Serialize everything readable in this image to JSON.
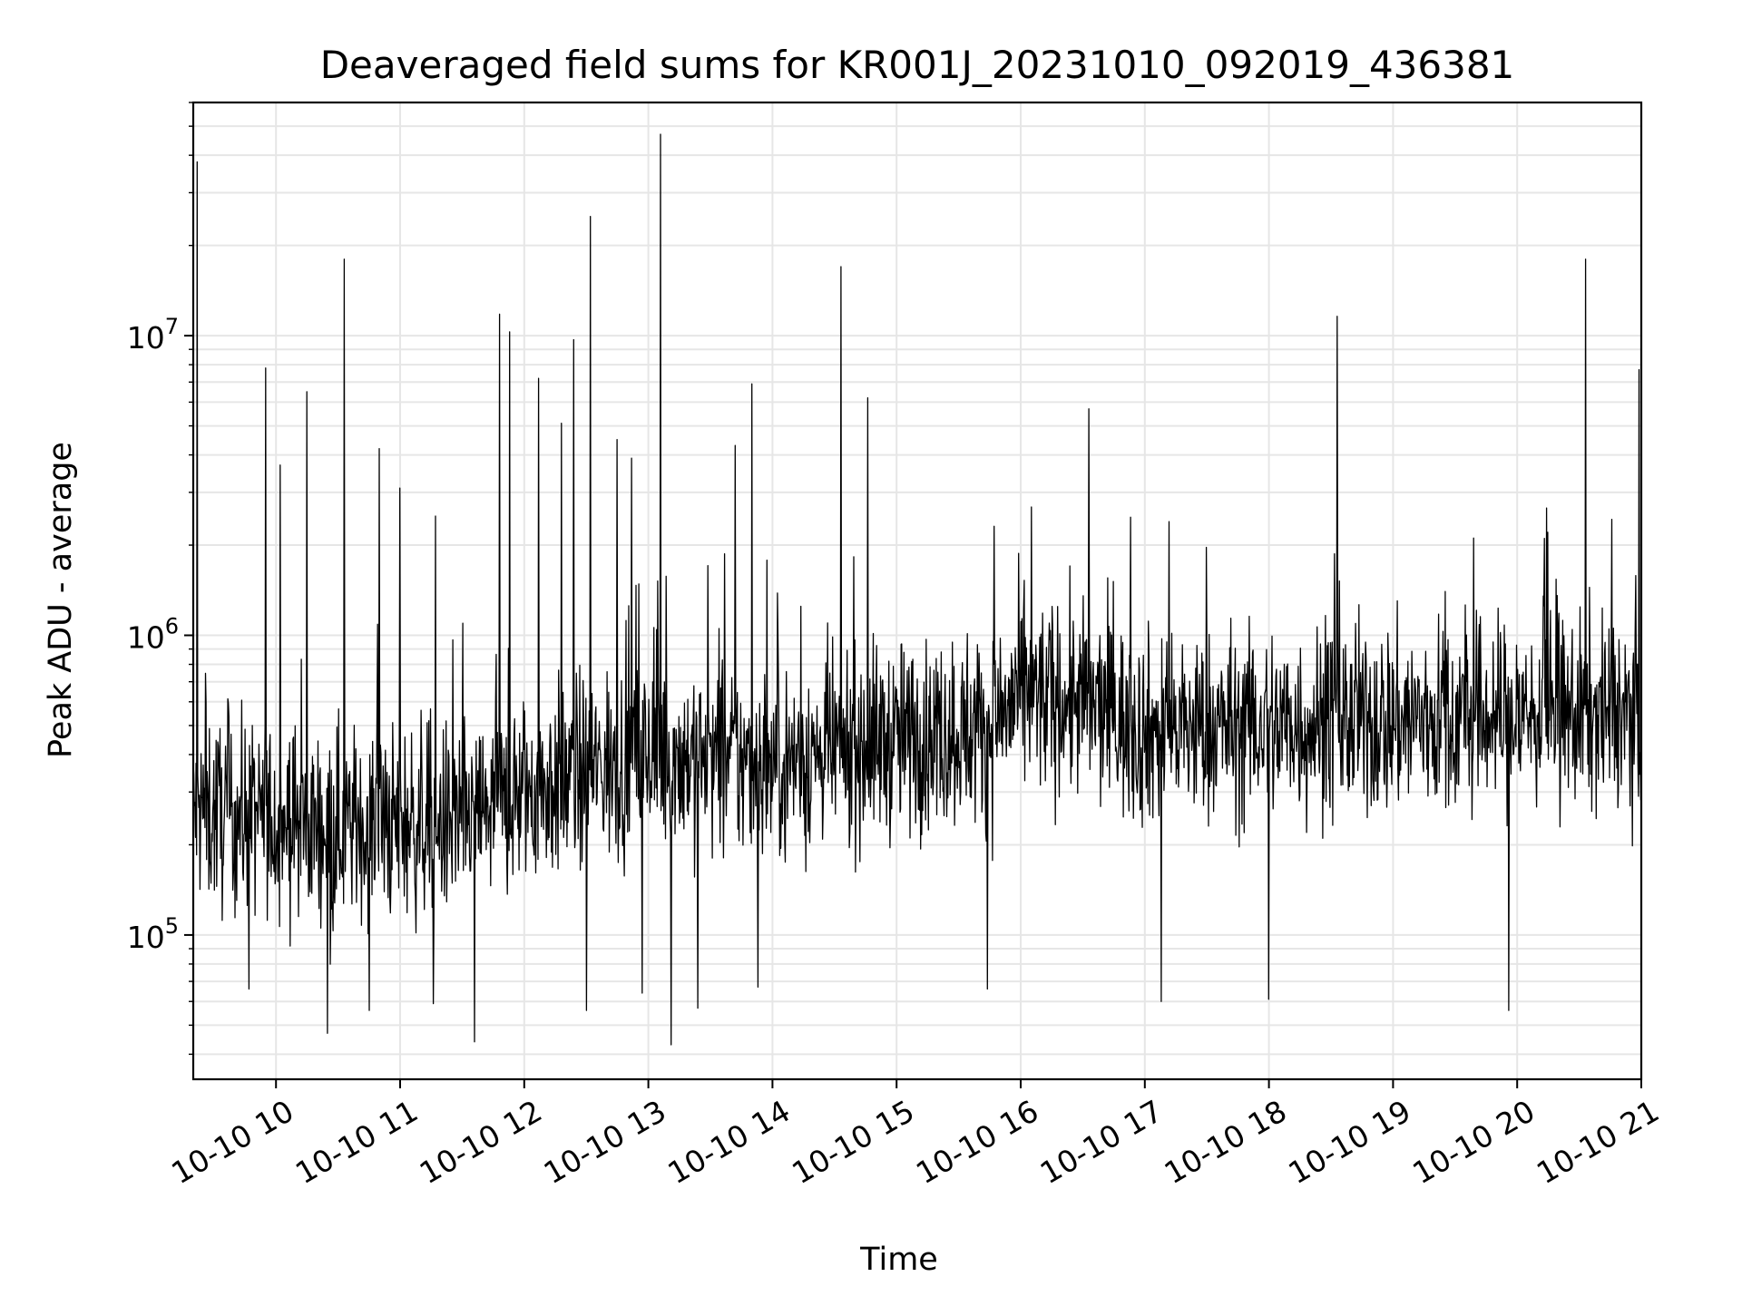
{
  "chart_data": {
    "type": "line",
    "title": "Deaveraged field sums for KR001J_20231010_092019_436381",
    "xlabel": "Time",
    "ylabel": "Peak ADU - average",
    "yscale": "log",
    "ylim": [
      33000,
      60000000
    ],
    "xlim": [
      "2023-10-10 09:20",
      "2023-10-10 21:00"
    ],
    "grid": true,
    "line_color": "#000000",
    "xticks": [
      "10-10 10",
      "10-10 11",
      "10-10 12",
      "10-10 13",
      "10-10 14",
      "10-10 15",
      "10-10 16",
      "10-10 17",
      "10-10 18",
      "10-10 19",
      "10-10 20",
      "10-10 21"
    ],
    "yticks": [
      {
        "value": 100000,
        "base": "10",
        "exp": "5"
      },
      {
        "value": 1000000,
        "base": "10",
        "exp": "6"
      },
      {
        "value": 10000000,
        "base": "10",
        "exp": "7"
      }
    ],
    "baseline": [
      {
        "t": "2023-10-10 09:20",
        "v": 260000
      },
      {
        "t": "2023-10-10 10:30",
        "v": 230000
      },
      {
        "t": "2023-10-10 11:30",
        "v": 240000
      },
      {
        "t": "2023-10-10 12:00",
        "v": 300000
      },
      {
        "t": "2023-10-10 13:00",
        "v": 400000
      },
      {
        "t": "2023-10-10 14:00",
        "v": 370000
      },
      {
        "t": "2023-10-10 15:00",
        "v": 450000
      },
      {
        "t": "2023-10-10 15:45",
        "v": 500000
      },
      {
        "t": "2023-10-10 16:00",
        "v": 620000
      },
      {
        "t": "2023-10-10 16:30",
        "v": 600000
      },
      {
        "t": "2023-10-10 17:00",
        "v": 480000
      },
      {
        "t": "2023-10-10 18:00",
        "v": 500000
      },
      {
        "t": "2023-10-10 19:00",
        "v": 520000
      },
      {
        "t": "2023-10-10 20:00",
        "v": 540000
      },
      {
        "t": "2023-10-10 21:00",
        "v": 550000
      }
    ],
    "spikes": [
      {
        "t": "2023-10-10 09:22",
        "v": 38000000
      },
      {
        "t": "2023-10-10 09:55",
        "v": 7800000
      },
      {
        "t": "2023-10-10 10:02",
        "v": 3700000
      },
      {
        "t": "2023-10-10 10:15",
        "v": 6500000
      },
      {
        "t": "2023-10-10 10:33",
        "v": 18000000
      },
      {
        "t": "2023-10-10 10:50",
        "v": 4200000
      },
      {
        "t": "2023-10-10 11:00",
        "v": 3100000
      },
      {
        "t": "2023-10-10 11:17",
        "v": 2500000
      },
      {
        "t": "2023-10-10 11:48",
        "v": 11800000
      },
      {
        "t": "2023-10-10 11:53",
        "v": 10300000
      },
      {
        "t": "2023-10-10 12:07",
        "v": 7200000
      },
      {
        "t": "2023-10-10 12:18",
        "v": 5100000
      },
      {
        "t": "2023-10-10 12:24",
        "v": 9700000
      },
      {
        "t": "2023-10-10 12:32",
        "v": 25000000
      },
      {
        "t": "2023-10-10 12:45",
        "v": 4500000
      },
      {
        "t": "2023-10-10 12:52",
        "v": 3900000
      },
      {
        "t": "2023-10-10 13:06",
        "v": 47000000
      },
      {
        "t": "2023-10-10 13:42",
        "v": 4300000
      },
      {
        "t": "2023-10-10 13:50",
        "v": 6900000
      },
      {
        "t": "2023-10-10 14:33",
        "v": 17000000
      },
      {
        "t": "2023-10-10 14:46",
        "v": 6200000
      },
      {
        "t": "2023-10-10 16:33",
        "v": 5700000
      },
      {
        "t": "2023-10-10 18:33",
        "v": 11600000
      },
      {
        "t": "2023-10-10 20:33",
        "v": 18000000
      },
      {
        "t": "2023-10-10 20:59",
        "v": 7700000
      }
    ],
    "dips": [
      {
        "t": "2023-10-10 09:47",
        "v": 66000
      },
      {
        "t": "2023-10-10 10:25",
        "v": 47000
      },
      {
        "t": "2023-10-10 10:45",
        "v": 56000
      },
      {
        "t": "2023-10-10 11:16",
        "v": 59000
      },
      {
        "t": "2023-10-10 11:36",
        "v": 44000
      },
      {
        "t": "2023-10-10 12:30",
        "v": 56000
      },
      {
        "t": "2023-10-10 12:57",
        "v": 64000
      },
      {
        "t": "2023-10-10 13:11",
        "v": 43000
      },
      {
        "t": "2023-10-10 13:24",
        "v": 57000
      },
      {
        "t": "2023-10-10 13:53",
        "v": 67000
      },
      {
        "t": "2023-10-10 15:44",
        "v": 66000
      },
      {
        "t": "2023-10-10 17:08",
        "v": 60000
      },
      {
        "t": "2023-10-10 18:00",
        "v": 61000
      },
      {
        "t": "2023-10-10 19:56",
        "v": 56000
      }
    ]
  }
}
